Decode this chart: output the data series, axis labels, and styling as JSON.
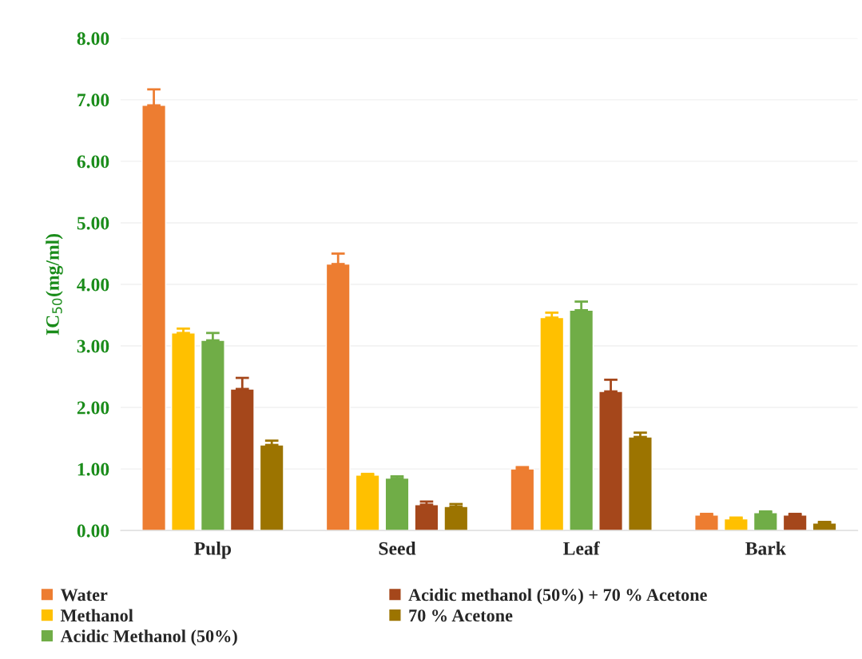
{
  "chart_data": {
    "type": "bar",
    "ylabel": "IC$_{50}$(mg/ml)",
    "categories": [
      "Pulp",
      "Seed",
      "Leaf",
      "Bark"
    ],
    "series": [
      {
        "name": "Water",
        "color": "#ed7d31",
        "values": [
          6.91,
          4.33,
          1.0,
          0.25
        ],
        "errors": [
          0.26,
          0.17,
          0.03,
          0.02
        ]
      },
      {
        "name": "Methanol",
        "color": "#ffc000",
        "values": [
          3.21,
          0.9,
          3.46,
          0.19
        ],
        "errors": [
          0.07,
          0.02,
          0.08,
          0.02
        ]
      },
      {
        "name": "Acidic Methanol (50%)",
        "color": "#70ad47",
        "values": [
          3.09,
          0.85,
          3.58,
          0.29
        ],
        "errors": [
          0.12,
          0.03,
          0.14,
          0.02
        ]
      },
      {
        "name": "Acidic methanol (50%) + 70 % Acetone",
        "color": "#a5471b",
        "values": [
          2.3,
          0.42,
          2.26,
          0.25
        ],
        "errors": [
          0.18,
          0.05,
          0.19,
          0.02
        ]
      },
      {
        "name": "70 % Acetone",
        "color": "#9c7400",
        "values": [
          1.39,
          0.39,
          1.52,
          0.12
        ],
        "errors": [
          0.07,
          0.04,
          0.07,
          0.02
        ]
      }
    ],
    "ylim": [
      0,
      8
    ],
    "yticks": [
      {
        "value": 0,
        "label": "0.00"
      },
      {
        "value": 1,
        "label": "1.00"
      },
      {
        "value": 2,
        "label": "2.00"
      },
      {
        "value": 3,
        "label": "3.00"
      },
      {
        "value": 4,
        "label": "4.00"
      },
      {
        "value": 5,
        "label": "5.00"
      },
      {
        "value": 6,
        "label": "6.00"
      },
      {
        "value": 7,
        "label": "7.00"
      },
      {
        "value": 8,
        "label": "8.00"
      }
    ],
    "grid": "y",
    "legend": "bottom"
  }
}
